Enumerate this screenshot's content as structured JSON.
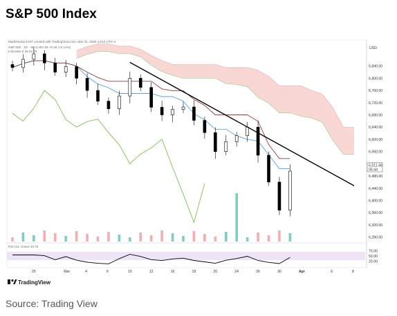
{
  "page": {
    "title": "S&P 500 Index",
    "source": "Source: Trading View"
  },
  "header": {
    "credit": "MarkNewtonCMT created with TradingView.com, Mar 31, 2026 14:54 UTC-4",
    "legend_line1": "S&P 500 · 1D · SP  6,492.36 +9.29 (+0.14%)",
    "legend_line2": "Ichimoku 9 26 52 26",
    "currency": "USD"
  },
  "branding": {
    "logo_text": "TradingView"
  },
  "colors": {
    "trendline": "#000000",
    "cloud_fill": "#f6c9c6",
    "tenkan": "#4aa3f0",
    "kijun": "#9b3b3b",
    "chikou": "#7cc24a",
    "rsi_line": "#000000",
    "rsi_band": "#efe3f8",
    "volume_up": "#5fbfb0",
    "volume_down": "#f29a9a",
    "candle": "#000000"
  },
  "chart_data": {
    "type": "line",
    "symbol": "S&P 500",
    "ylim": [
      6270,
      6880
    ],
    "y_ticks": [
      "6,840.00",
      "6,800.00",
      "6,760.00",
      "6,720.00",
      "6,680.00",
      "6,640.00",
      "6,600.00",
      "6,560.00",
      "6,520.00",
      "6,480.00",
      "6,440.00",
      "6,400.00",
      "6,360.00",
      "6,320.00",
      "6,280.00"
    ],
    "price_label": "6,511.46",
    "price_label_sub": "05:44",
    "x_ticks": [
      "25",
      "Mar",
      "4",
      "6",
      "10",
      "12",
      "16",
      "18",
      "20",
      "24",
      "26",
      "30",
      "Apr",
      "6",
      "8"
    ],
    "rsi": {
      "label": "RSI (14, close) 40.75",
      "ticks": [
        "75.00",
        "50.00",
        "25.00"
      ],
      "ylim": [
        0,
        100
      ]
    },
    "trendline": {
      "points": [
        [
          "Mar 10",
          6852
        ],
        [
          "Apr 8",
          6448
        ]
      ]
    },
    "series": [
      {
        "kind": "close",
        "x": [
          "Feb 23",
          "Feb 24",
          "Feb 25",
          "Feb 26",
          "Feb 27",
          "Mar 2",
          "Mar 3",
          "Mar 4",
          "Mar 5",
          "Mar 6",
          "Mar 9",
          "Mar 10",
          "Mar 11",
          "Mar 12",
          "Mar 13",
          "Mar 16",
          "Mar 17",
          "Mar 18",
          "Mar 19",
          "Mar 20",
          "Mar 23",
          "Mar 24",
          "Mar 25",
          "Mar 26",
          "Mar 27",
          "Mar 30",
          "Mar 31"
        ],
        "values": [
          6835,
          6862,
          6880,
          6850,
          6820,
          6838,
          6800,
          6760,
          6725,
          6700,
          6742,
          6800,
          6770,
          6705,
          6680,
          6698,
          6706,
          6662,
          6622,
          6560,
          6592,
          6612,
          6640,
          6548,
          6460,
          6368,
          6496
        ]
      }
    ]
  }
}
